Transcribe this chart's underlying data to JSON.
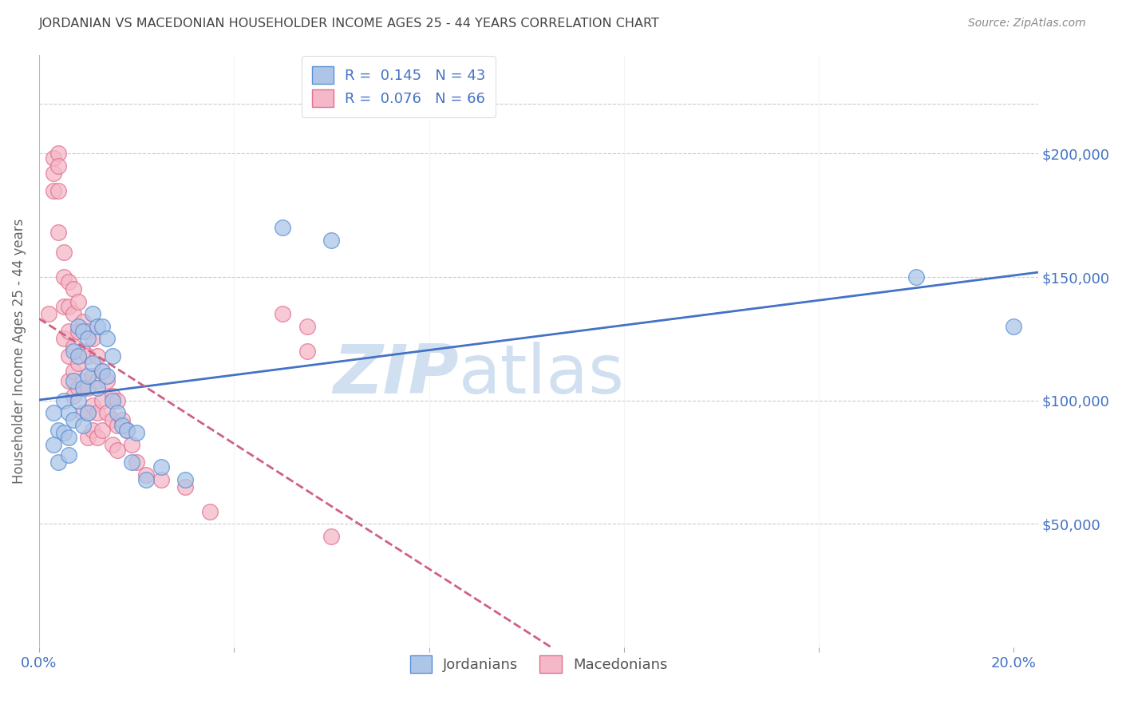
{
  "title": "JORDANIAN VS MACEDONIAN HOUSEHOLDER INCOME AGES 25 - 44 YEARS CORRELATION CHART",
  "source": "Source: ZipAtlas.com",
  "ylabel_label": "Householder Income Ages 25 - 44 years",
  "legend_blue_r": "0.145",
  "legend_blue_n": "43",
  "legend_pink_r": "0.076",
  "legend_pink_n": "66",
  "legend_label_blue": "Jordanians",
  "legend_label_pink": "Macedonians",
  "xlim": [
    0.0,
    0.205
  ],
  "ylim": [
    0,
    240000
  ],
  "background_color": "#ffffff",
  "grid_color": "#cccccc",
  "blue_color": "#adc6e8",
  "blue_edge_color": "#5b8fd4",
  "pink_color": "#f5b8c8",
  "pink_edge_color": "#e07090",
  "blue_line_color": "#4472c4",
  "pink_line_color": "#d06080",
  "title_color": "#444444",
  "source_color": "#888888",
  "watermark_color": "#d0e0f0",
  "blue_scatter_x": [
    0.003,
    0.003,
    0.004,
    0.004,
    0.005,
    0.005,
    0.006,
    0.006,
    0.006,
    0.007,
    0.007,
    0.007,
    0.008,
    0.008,
    0.008,
    0.009,
    0.009,
    0.009,
    0.01,
    0.01,
    0.01,
    0.011,
    0.011,
    0.012,
    0.012,
    0.013,
    0.013,
    0.014,
    0.014,
    0.015,
    0.015,
    0.016,
    0.017,
    0.018,
    0.019,
    0.02,
    0.022,
    0.025,
    0.03,
    0.05,
    0.06,
    0.18,
    0.2
  ],
  "blue_scatter_y": [
    95000,
    82000,
    88000,
    75000,
    100000,
    87000,
    85000,
    95000,
    78000,
    120000,
    108000,
    92000,
    130000,
    118000,
    100000,
    128000,
    105000,
    90000,
    125000,
    110000,
    95000,
    135000,
    115000,
    130000,
    105000,
    130000,
    112000,
    125000,
    110000,
    118000,
    100000,
    95000,
    90000,
    88000,
    75000,
    87000,
    68000,
    73000,
    68000,
    170000,
    165000,
    150000,
    130000
  ],
  "pink_scatter_x": [
    0.002,
    0.003,
    0.003,
    0.003,
    0.004,
    0.004,
    0.004,
    0.004,
    0.005,
    0.005,
    0.005,
    0.005,
    0.006,
    0.006,
    0.006,
    0.006,
    0.006,
    0.007,
    0.007,
    0.007,
    0.007,
    0.007,
    0.008,
    0.008,
    0.008,
    0.008,
    0.009,
    0.009,
    0.009,
    0.009,
    0.01,
    0.01,
    0.01,
    0.01,
    0.01,
    0.011,
    0.011,
    0.011,
    0.011,
    0.012,
    0.012,
    0.012,
    0.012,
    0.013,
    0.013,
    0.013,
    0.014,
    0.014,
    0.015,
    0.015,
    0.015,
    0.016,
    0.016,
    0.016,
    0.017,
    0.018,
    0.019,
    0.02,
    0.022,
    0.025,
    0.03,
    0.035,
    0.05,
    0.055,
    0.055,
    0.06
  ],
  "pink_scatter_y": [
    135000,
    198000,
    192000,
    185000,
    200000,
    195000,
    185000,
    168000,
    160000,
    150000,
    138000,
    125000,
    148000,
    138000,
    128000,
    118000,
    108000,
    145000,
    135000,
    122000,
    112000,
    102000,
    140000,
    128000,
    115000,
    105000,
    132000,
    120000,
    108000,
    95000,
    128000,
    118000,
    105000,
    95000,
    85000,
    125000,
    110000,
    98000,
    88000,
    118000,
    108000,
    95000,
    85000,
    112000,
    100000,
    88000,
    108000,
    95000,
    102000,
    92000,
    82000,
    100000,
    90000,
    80000,
    92000,
    88000,
    82000,
    75000,
    70000,
    68000,
    65000,
    55000,
    135000,
    130000,
    120000,
    45000
  ]
}
